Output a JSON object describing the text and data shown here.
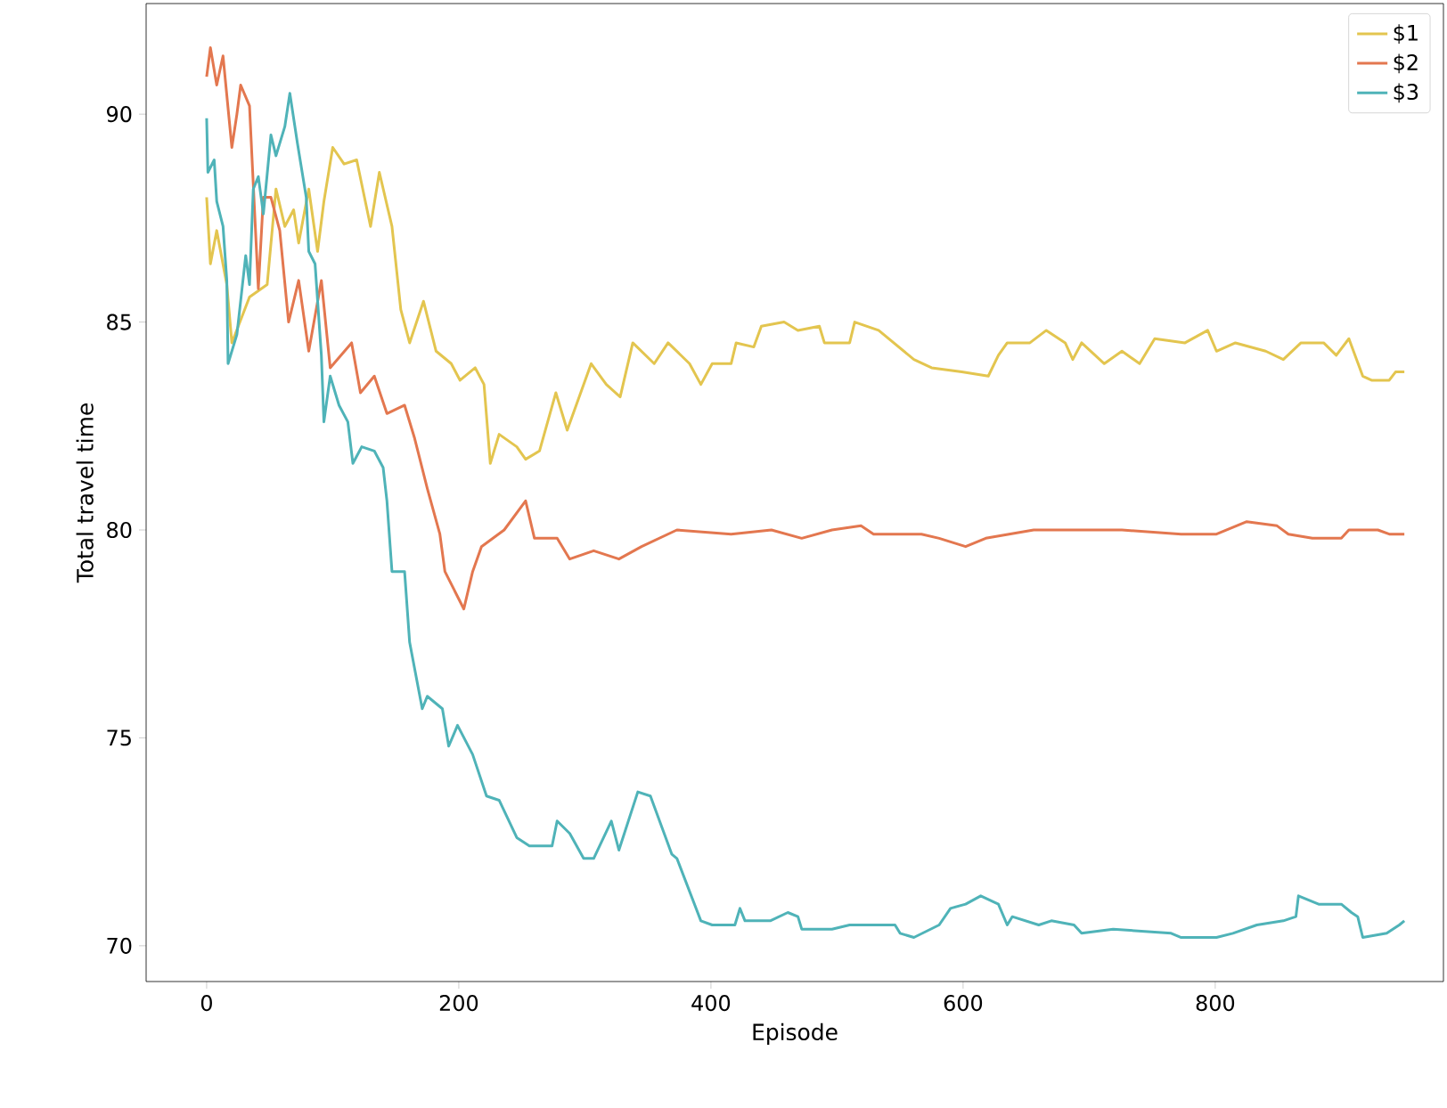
{
  "chart_data": {
    "type": "line",
    "xlabel": "Episode",
    "ylabel": "Total travel time",
    "xlim": [
      -48,
      981
    ],
    "ylim": [
      69.14,
      92.66
    ],
    "xticks": [
      0,
      200,
      400,
      600,
      800
    ],
    "yticks": [
      70,
      75,
      80,
      85,
      90
    ],
    "legend": "top right",
    "grid": false,
    "series": [
      {
        "name": "$1",
        "color": "#e3c54f",
        "x": [
          0,
          3,
          8,
          16,
          20,
          34,
          48,
          55,
          62,
          69,
          73,
          81,
          88,
          93,
          100,
          109,
          119,
          130,
          137,
          147,
          154,
          161,
          172,
          182,
          194,
          201,
          213,
          220,
          225,
          232,
          246,
          253,
          264,
          277,
          286,
          305,
          317,
          328,
          338,
          355,
          366,
          383,
          392,
          401,
          416,
          420,
          434,
          440,
          458,
          469,
          486,
          490,
          510,
          514,
          533,
          561,
          575,
          599,
          620,
          628,
          635,
          653,
          666,
          681,
          687,
          694,
          712,
          726,
          740,
          752,
          776,
          794,
          801,
          816,
          840,
          854,
          868,
          886,
          896,
          906,
          917,
          924,
          938,
          943,
          950
        ],
        "values": [
          88.0,
          86.4,
          87.2,
          85.9,
          84.5,
          85.6,
          85.9,
          88.2,
          87.3,
          87.7,
          86.9,
          88.2,
          86.7,
          87.9,
          89.2,
          88.8,
          88.9,
          87.3,
          88.6,
          87.3,
          85.3,
          84.5,
          85.5,
          84.3,
          84.0,
          83.6,
          83.9,
          83.5,
          81.6,
          82.3,
          82.0,
          81.7,
          81.9,
          83.3,
          82.4,
          84.0,
          83.5,
          83.2,
          84.5,
          84.0,
          84.5,
          84.0,
          83.5,
          84.0,
          84.0,
          84.5,
          84.4,
          84.9,
          85.0,
          84.8,
          84.9,
          84.5,
          84.5,
          85.0,
          84.8,
          84.1,
          83.9,
          83.8,
          83.7,
          84.2,
          84.5,
          84.5,
          84.8,
          84.5,
          84.1,
          84.5,
          84.0,
          84.3,
          84.0,
          84.6,
          84.5,
          84.8,
          84.3,
          84.5,
          84.3,
          84.1,
          84.5,
          84.5,
          84.2,
          84.6,
          83.7,
          83.6,
          83.6,
          83.8,
          83.8
        ]
      },
      {
        "name": "$2",
        "color": "#e3774f",
        "x": [
          0,
          3,
          8,
          13,
          20,
          24,
          27,
          34,
          41,
          45,
          51,
          58,
          65,
          73,
          81,
          91,
          98,
          115,
          122,
          133,
          143,
          157,
          165,
          175,
          185,
          189,
          204,
          211,
          218,
          236,
          253,
          260,
          278,
          288,
          307,
          327,
          345,
          373,
          416,
          448,
          472,
          496,
          519,
          529,
          567,
          581,
          602,
          618,
          656,
          726,
          773,
          801,
          825,
          849,
          858,
          877,
          900,
          906,
          929,
          938,
          950
        ],
        "values": [
          90.9,
          91.6,
          90.7,
          91.4,
          89.2,
          90.0,
          90.7,
          90.2,
          85.8,
          88.0,
          88.0,
          87.2,
          85.0,
          86.0,
          84.3,
          86.0,
          83.9,
          84.5,
          83.3,
          83.7,
          82.8,
          83.0,
          82.2,
          81.0,
          79.9,
          79.0,
          78.1,
          79.0,
          79.6,
          80.0,
          80.7,
          79.8,
          79.8,
          79.3,
          79.5,
          79.3,
          79.6,
          80.0,
          79.9,
          80.0,
          79.8,
          80.0,
          80.1,
          79.9,
          79.9,
          79.8,
          79.6,
          79.8,
          80.0,
          80.0,
          79.9,
          79.9,
          80.2,
          80.1,
          79.9,
          79.8,
          79.8,
          80.0,
          80.0,
          79.9,
          79.9
        ]
      },
      {
        "name": "$3",
        "color": "#4fb3b8",
        "x": [
          0,
          1,
          6,
          8,
          13,
          16,
          17,
          24,
          31,
          34,
          37,
          41,
          45,
          51,
          55,
          62,
          66,
          72,
          79,
          81,
          86,
          91,
          93,
          98,
          105,
          112,
          116,
          123,
          133,
          140,
          143,
          147,
          157,
          161,
          171,
          175,
          187,
          192,
          199,
          211,
          222,
          232,
          246,
          256,
          274,
          278,
          288,
          299,
          307,
          321,
          327,
          342,
          352,
          369,
          373,
          392,
          401,
          419,
          423,
          427,
          447,
          461,
          469,
          472,
          496,
          510,
          524,
          546,
          550,
          561,
          581,
          590,
          602,
          614,
          628,
          635,
          639,
          660,
          670,
          688,
          694,
          719,
          765,
          773,
          801,
          814,
          833,
          854,
          864,
          866,
          882,
          900,
          908,
          913,
          917,
          936,
          946,
          950
        ],
        "values": [
          89.9,
          88.6,
          88.9,
          87.9,
          87.3,
          86.0,
          84.0,
          84.7,
          86.6,
          85.9,
          88.2,
          88.5,
          87.6,
          89.5,
          89.0,
          89.7,
          90.5,
          89.3,
          88.0,
          86.7,
          86.4,
          84.2,
          82.6,
          83.7,
          83.0,
          82.6,
          81.6,
          82.0,
          81.9,
          81.5,
          80.7,
          79.0,
          79.0,
          77.3,
          75.7,
          76.0,
          75.7,
          74.8,
          75.3,
          74.6,
          73.6,
          73.5,
          72.6,
          72.4,
          72.4,
          73.0,
          72.7,
          72.1,
          72.1,
          73.0,
          72.3,
          73.7,
          73.6,
          72.2,
          72.1,
          70.6,
          70.5,
          70.5,
          70.9,
          70.6,
          70.6,
          70.8,
          70.7,
          70.4,
          70.4,
          70.5,
          70.5,
          70.5,
          70.3,
          70.2,
          70.5,
          70.9,
          71.0,
          71.2,
          71.0,
          70.5,
          70.7,
          70.5,
          70.6,
          70.5,
          70.3,
          70.4,
          70.3,
          70.2,
          70.2,
          70.3,
          70.5,
          70.6,
          70.7,
          71.2,
          71.0,
          71.0,
          70.8,
          70.7,
          70.2,
          70.3,
          70.5,
          70.6
        ]
      }
    ]
  }
}
